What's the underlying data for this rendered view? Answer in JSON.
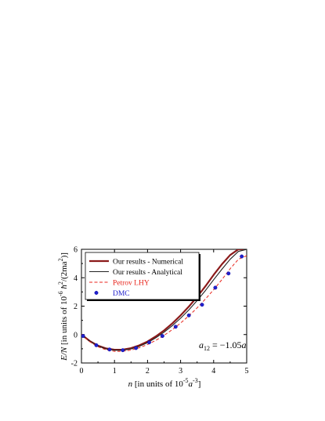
{
  "chart_data": {
    "type": "line",
    "xlabel": {
      "var": "n",
      "pre": " [in units of 10",
      "exp1": "-5",
      "mid": "a",
      "exp2": "-3",
      "post": "]"
    },
    "ylabel": {
      "var": "E/N",
      "pre": " [in units of 10",
      "exp1": "-6",
      "mid": " ħ",
      "exp2": "2",
      "mid2": "/(2ma",
      "exp3": "2",
      "post": ")]"
    },
    "annotation": {
      "var": "a",
      "sub": "12",
      "rest": " = −1.05",
      "var2": "a"
    },
    "xlim": [
      0,
      5
    ],
    "ylim": [
      -2,
      6
    ],
    "xticks": [
      "0",
      "1",
      "2",
      "3",
      "4",
      "5"
    ],
    "yticks": [
      "-2",
      "0",
      "2",
      "4",
      "6"
    ],
    "legend_position": "top-left",
    "series": [
      {
        "name": "Our results - Numerical",
        "style": "solid-thick",
        "color": "#8b1a1a",
        "x": [
          0,
          0.25,
          0.5,
          0.75,
          1.0,
          1.25,
          1.5,
          1.75,
          2.0,
          2.25,
          2.5,
          2.75,
          3.0,
          3.25,
          3.5,
          3.75,
          4.0,
          4.25,
          4.5,
          4.75,
          4.93
        ],
        "y": [
          0,
          -0.45,
          -0.78,
          -0.98,
          -1.07,
          -1.06,
          -0.96,
          -0.76,
          -0.49,
          -0.13,
          0.29,
          0.79,
          1.35,
          1.97,
          2.65,
          3.4,
          4.2,
          4.95,
          5.6,
          6.0,
          6.0
        ]
      },
      {
        "name": "Our results - Analytical",
        "style": "solid-thin",
        "color": "#222222",
        "x": [
          0,
          0.25,
          0.5,
          0.75,
          1.0,
          1.25,
          1.5,
          1.75,
          2.0,
          2.25,
          2.5,
          2.75,
          3.0,
          3.25,
          3.5,
          3.75,
          4.0,
          4.25,
          4.5,
          4.75,
          5.0
        ],
        "y": [
          0,
          -0.46,
          -0.8,
          -1.01,
          -1.1,
          -1.1,
          -1.01,
          -0.83,
          -0.57,
          -0.23,
          0.17,
          0.63,
          1.15,
          1.74,
          2.39,
          3.1,
          3.86,
          4.6,
          5.3,
          5.85,
          6.0
        ]
      },
      {
        "name": "Petrov LHY",
        "style": "dashed",
        "color": "#e8251c",
        "x": [
          0,
          0.25,
          0.5,
          0.75,
          1.0,
          1.25,
          1.5,
          1.75,
          2.0,
          2.25,
          2.5,
          2.75,
          3.0,
          3.25,
          3.5,
          3.75,
          4.0,
          4.25,
          4.5,
          4.75,
          5.0
        ],
        "y": [
          0,
          -0.5,
          -0.86,
          -1.08,
          -1.18,
          -1.18,
          -1.09,
          -0.93,
          -0.7,
          -0.41,
          -0.06,
          0.35,
          0.81,
          1.32,
          1.88,
          2.5,
          3.16,
          3.87,
          4.63,
          5.3,
          5.55
        ]
      },
      {
        "name": "DMC",
        "style": "markers",
        "color": "#2222cc",
        "x": [
          0.05,
          0.45,
          0.85,
          1.25,
          1.65,
          2.05,
          2.45,
          2.85,
          3.25,
          3.65,
          4.05,
          4.45,
          4.85
        ],
        "y": [
          -0.1,
          -0.75,
          -1.05,
          -1.1,
          -0.95,
          -0.55,
          -0.1,
          0.55,
          1.35,
          2.1,
          3.3,
          4.3,
          5.5
        ]
      }
    ]
  }
}
